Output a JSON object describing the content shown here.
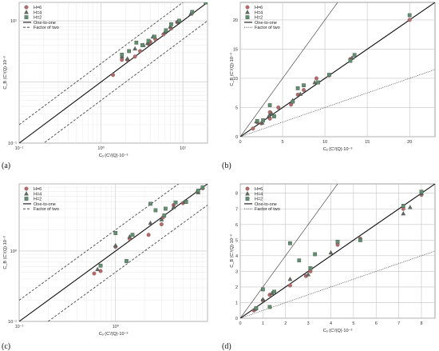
{
  "panel_labels": [
    "(a)",
    "(b)",
    "(c)",
    "(d)"
  ],
  "colors": {
    "H6": "#b86a6a",
    "H4": "#5f6b5f",
    "H2": "#5f8f6f",
    "one_to_one": "#111111",
    "factor_two": "#333333",
    "grid_major": "#c4c4c4",
    "grid_minor": "#e4e4e4"
  },
  "chart_data": [
    {
      "type": "scatter",
      "panel": "(a)",
      "scale": "log",
      "xlabel": "Cₒ (C'/(Q)·10⁻³",
      "ylabel": "C_B (C'/(Q)·10⁻³",
      "xlim": [
        0.1,
        20
      ],
      "ylim": [
        0.1,
        20
      ],
      "x_ticks": [
        0.1,
        1,
        10
      ],
      "x_tick_labels": [
        "10⁻¹",
        "10⁰",
        "10¹"
      ],
      "y_ticks": [
        0.1,
        10
      ],
      "y_tick_labels": [
        "10⁻¹",
        "10¹"
      ],
      "grid": true,
      "legend_position": "top-left",
      "legend": [
        "H=6",
        "H=4",
        "H=2",
        "One-to-one",
        "Factor of two"
      ],
      "reference_lines": [
        {
          "name": "One-to-one",
          "factor": 1,
          "style": "solid"
        },
        {
          "name": "Factor of two",
          "factor": 2,
          "style": "dashed"
        },
        {
          "name": "Factor of two",
          "factor": 0.5,
          "style": "dashed"
        }
      ],
      "series": [
        {
          "name": "H=6",
          "marker": "circle",
          "points": [
            [
              1.4,
              1.3
            ],
            [
              1.8,
              2.3
            ],
            [
              2.1,
              2.3
            ],
            [
              2.6,
              2.6
            ],
            [
              3.0,
              3.2
            ],
            [
              3.8,
              4.2
            ],
            [
              4.0,
              4.5
            ],
            [
              4.6,
              5.0
            ],
            [
              5.8,
              6.0
            ],
            [
              7.2,
              7.5
            ],
            [
              8.5,
              9.5
            ],
            [
              9.0,
              10.0
            ],
            [
              13.0,
              13.5
            ]
          ]
        },
        {
          "name": "H=4",
          "marker": "triangle",
          "points": [
            [
              1.8,
              2.6
            ],
            [
              2.1,
              2.4
            ],
            [
              2.6,
              3.5
            ],
            [
              3.3,
              4.0
            ],
            [
              3.7,
              4.3
            ],
            [
              4.3,
              5.5
            ],
            [
              6.0,
              6.5
            ],
            [
              7.0,
              8.0
            ],
            [
              8.7,
              9.8
            ],
            [
              12.5,
              13.0
            ]
          ]
        },
        {
          "name": "H=2",
          "marker": "square",
          "points": [
            [
              1.8,
              2.8
            ],
            [
              2.2,
              3.2
            ],
            [
              2.7,
              4.4
            ],
            [
              3.2,
              4.0
            ],
            [
              3.8,
              4.7
            ],
            [
              4.5,
              5.5
            ],
            [
              6.2,
              7.0
            ],
            [
              7.2,
              8.8
            ],
            [
              9.0,
              10.0
            ],
            [
              13.0,
              14.0
            ],
            [
              19.0,
              20.0
            ]
          ]
        }
      ]
    },
    {
      "type": "scatter",
      "panel": "(b)",
      "scale": "linear",
      "xlabel": "Cₒ (C'/(Q)·10⁻³",
      "ylabel": "C_B (C'/(Q)·10⁻³",
      "xlim": [
        0,
        23
      ],
      "ylim": [
        0,
        23
      ],
      "x_ticks": [
        0,
        5,
        10,
        15,
        20
      ],
      "y_ticks": [
        0,
        5,
        10,
        15,
        20
      ],
      "grid": true,
      "legend_position": "top-left",
      "legend": [
        "H=6",
        "H=4",
        "H=2",
        "One-to-one",
        "Factor of two"
      ],
      "reference_lines": [
        {
          "name": "One-to-one",
          "factor": 1,
          "style": "solid"
        },
        {
          "name": "Factor of two",
          "factor": 2,
          "style": "solid-thin"
        },
        {
          "name": "Factor of two",
          "factor": 0.5,
          "style": "dotted"
        }
      ],
      "series": [
        {
          "name": "H=6",
          "marker": "circle",
          "points": [
            [
              1.5,
              1.4
            ],
            [
              2.0,
              2.5
            ],
            [
              2.5,
              2.3
            ],
            [
              3.5,
              3.1
            ],
            [
              3.5,
              4.2
            ],
            [
              4.5,
              5.0
            ],
            [
              6.0,
              5.5
            ],
            [
              6.8,
              7.2
            ],
            [
              7.5,
              8.0
            ],
            [
              9.0,
              10.0
            ],
            [
              10.5,
              10.5
            ],
            [
              13.0,
              13.3
            ],
            [
              20.0,
              20.0
            ]
          ]
        },
        {
          "name": "H=4",
          "marker": "triangle",
          "points": [
            [
              1.9,
              2.6
            ],
            [
              2.6,
              2.4
            ],
            [
              3.4,
              3.6
            ],
            [
              3.7,
              4.0
            ],
            [
              6.2,
              6.2
            ],
            [
              7.1,
              7.3
            ],
            [
              8.8,
              9.3
            ],
            [
              13.2,
              13.5
            ]
          ]
        },
        {
          "name": "H=2",
          "marker": "square",
          "points": [
            [
              2.0,
              2.7
            ],
            [
              2.7,
              2.8
            ],
            [
              3.5,
              5.4
            ],
            [
              4.0,
              3.5
            ],
            [
              6.2,
              6.0
            ],
            [
              6.8,
              8.3
            ],
            [
              7.5,
              8.8
            ],
            [
              9.2,
              9.3
            ],
            [
              10.5,
              10.6
            ],
            [
              13.0,
              13.0
            ],
            [
              13.5,
              14.0
            ],
            [
              20.0,
              20.8
            ]
          ]
        }
      ]
    },
    {
      "type": "scatter",
      "panel": "(c)",
      "scale": "log",
      "xlabel": "Cₒ (C'/(Q)·10⁻³",
      "ylabel": "C_B (C'/(Q)·10⁻³",
      "xlim": [
        0.1,
        9
      ],
      "ylim": [
        0.1,
        9
      ],
      "x_ticks": [
        0.1,
        1
      ],
      "x_tick_labels": [
        "10⁻¹",
        "10⁰"
      ],
      "y_ticks": [
        0.1,
        1
      ],
      "y_tick_labels": [
        "10⁻¹",
        "10⁰"
      ],
      "grid": true,
      "legend_position": "top-left",
      "legend": [
        "H=6",
        "H=4",
        "H=2",
        "One-to-one",
        "Factor of two"
      ],
      "reference_lines": [
        {
          "name": "One-to-one",
          "factor": 1,
          "style": "solid"
        },
        {
          "name": "Factor of two",
          "factor": 2,
          "style": "dashed"
        },
        {
          "name": "Factor of two",
          "factor": 0.5,
          "style": "dashed"
        }
      ],
      "series": [
        {
          "name": "H=6",
          "marker": "circle",
          "points": [
            [
              0.6,
              0.48
            ],
            [
              0.7,
              0.52
            ],
            [
              1.0,
              1.15
            ],
            [
              1.4,
              1.5
            ],
            [
              2.2,
              1.7
            ],
            [
              3.0,
              2.4
            ],
            [
              3.1,
              3.0
            ],
            [
              4.0,
              4.5
            ],
            [
              5.0,
              4.8
            ],
            [
              7.1,
              7.0
            ],
            [
              8.0,
              7.8
            ]
          ]
        },
        {
          "name": "H=4",
          "marker": "triangle",
          "points": [
            [
              0.65,
              0.55
            ],
            [
              1.0,
              1.2
            ],
            [
              1.4,
              1.6
            ],
            [
              2.3,
              2.5
            ],
            [
              3.0,
              2.8
            ],
            [
              4.0,
              4.2
            ],
            [
              5.2,
              5.0
            ],
            [
              7.2,
              6.8
            ],
            [
              8.0,
              8.0
            ]
          ]
        },
        {
          "name": "H=2",
          "marker": "square",
          "points": [
            [
              0.7,
              0.62
            ],
            [
              1.0,
              1.8
            ],
            [
              1.3,
              0.72
            ],
            [
              1.5,
              1.7
            ],
            [
              2.3,
              4.7
            ],
            [
              2.6,
              3.8
            ],
            [
              3.2,
              3.2
            ],
            [
              3.3,
              4.0
            ],
            [
              4.2,
              4.9
            ],
            [
              5.4,
              5.0
            ],
            [
              7.2,
              7.2
            ],
            [
              8.0,
              8.0
            ]
          ]
        }
      ]
    },
    {
      "type": "scatter",
      "panel": "(d)",
      "scale": "linear",
      "xlabel": "Cₒ (C'/(Q)·10⁻³",
      "ylabel": "C_B (C'/(Q)·10⁻³",
      "xlim": [
        0,
        8.6
      ],
      "ylim": [
        0,
        8.6
      ],
      "x_ticks": [
        0,
        1,
        2,
        3,
        4,
        5,
        6,
        7,
        8
      ],
      "y_ticks": [
        0,
        1,
        2,
        3,
        4,
        5,
        6,
        7,
        8
      ],
      "grid": true,
      "legend_position": "top-left",
      "legend": [
        "H=6",
        "H=4",
        "H=2",
        "One-to-one",
        "Factor of two"
      ],
      "reference_lines": [
        {
          "name": "One-to-one",
          "factor": 1,
          "style": "solid"
        },
        {
          "name": "Factor of two",
          "factor": 2,
          "style": "solid-thin"
        },
        {
          "name": "Factor of two",
          "factor": 0.5,
          "style": "dotted"
        }
      ],
      "series": [
        {
          "name": "H=6",
          "marker": "circle",
          "points": [
            [
              0.6,
              0.5
            ],
            [
              0.7,
              0.6
            ],
            [
              1.0,
              1.15
            ],
            [
              1.3,
              1.5
            ],
            [
              2.2,
              2.1
            ],
            [
              2.9,
              2.7
            ],
            [
              3.1,
              3.0
            ],
            [
              4.3,
              4.7
            ],
            [
              5.3,
              5.1
            ],
            [
              7.2,
              7.0
            ],
            [
              8.0,
              7.9
            ]
          ]
        },
        {
          "name": "H=4",
          "marker": "triangle",
          "points": [
            [
              0.65,
              0.6
            ],
            [
              1.0,
              1.2
            ],
            [
              1.4,
              1.6
            ],
            [
              2.2,
              2.5
            ],
            [
              3.0,
              2.8
            ],
            [
              4.0,
              4.2
            ],
            [
              5.3,
              5.0
            ],
            [
              7.2,
              6.7
            ],
            [
              7.5,
              7.1
            ],
            [
              8.0,
              8.0
            ]
          ]
        },
        {
          "name": "H=2",
          "marker": "square",
          "points": [
            [
              0.7,
              0.65
            ],
            [
              1.0,
              1.85
            ],
            [
              1.3,
              0.72
            ],
            [
              1.5,
              1.7
            ],
            [
              2.2,
              4.8
            ],
            [
              2.6,
              3.7
            ],
            [
              3.1,
              3.2
            ],
            [
              3.3,
              4.1
            ],
            [
              4.3,
              4.9
            ],
            [
              5.3,
              5.0
            ],
            [
              7.2,
              7.2
            ],
            [
              8.0,
              8.1
            ]
          ]
        }
      ]
    }
  ]
}
